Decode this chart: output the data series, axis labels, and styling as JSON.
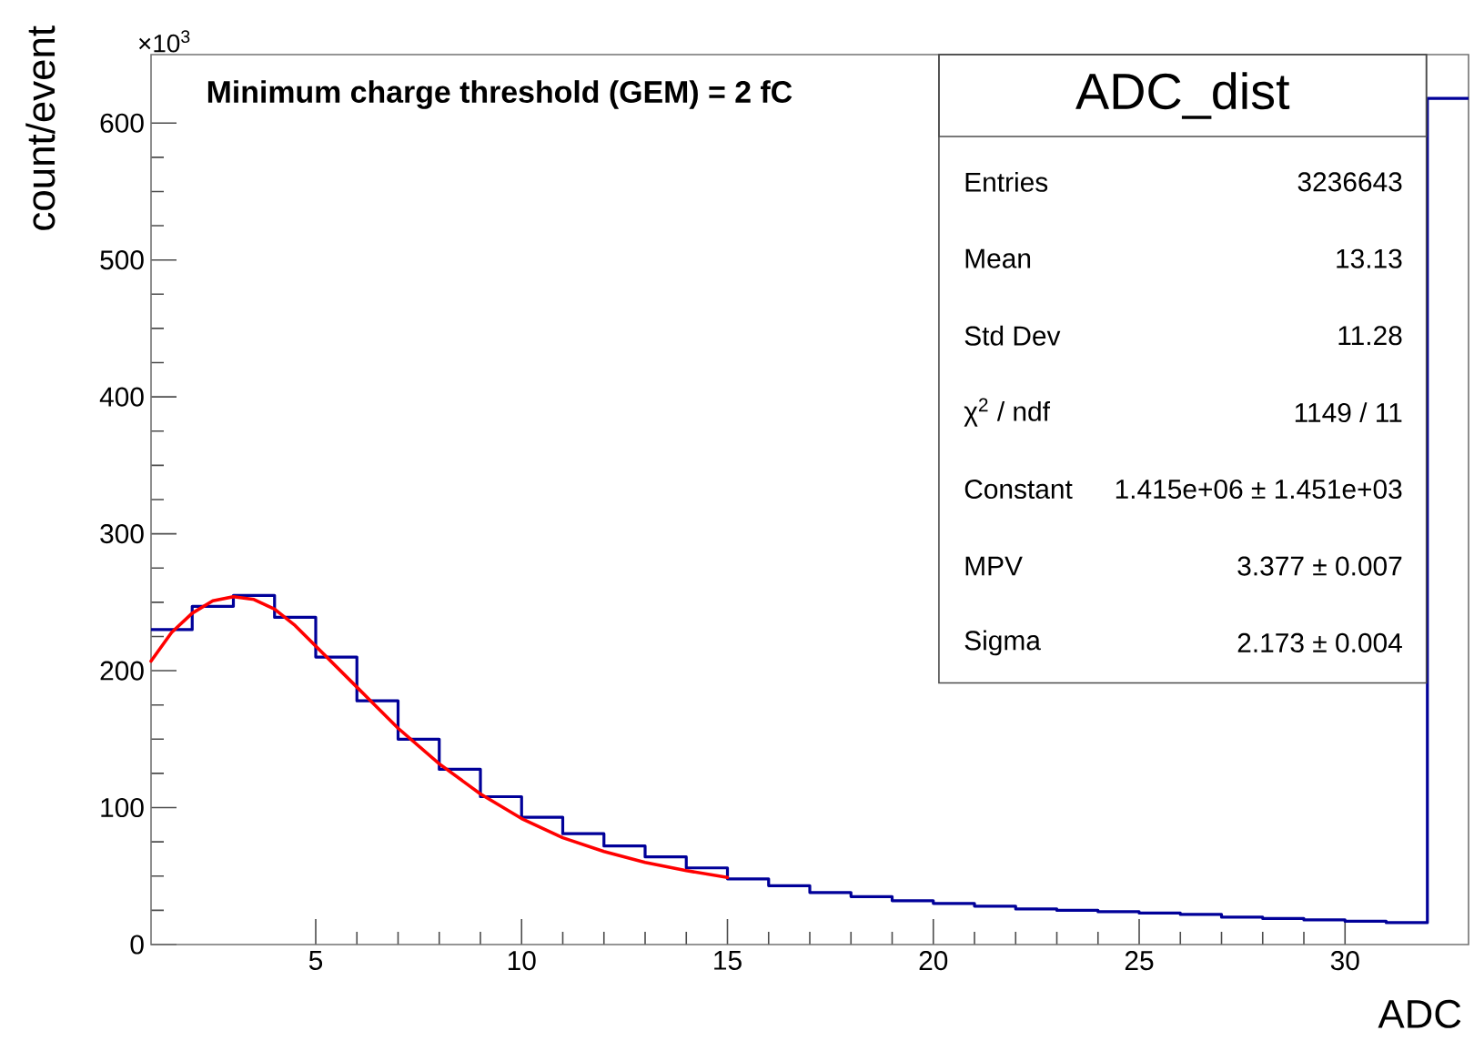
{
  "chart_data": {
    "type": "histogram",
    "title": "Minimum charge threshold (GEM) = 2 fC",
    "xlabel": "ADC",
    "ylabel": "count/event",
    "bins": [
      1,
      2,
      3,
      4,
      5,
      6,
      7,
      8,
      9,
      10,
      11,
      12,
      13,
      14,
      15,
      16,
      17,
      18,
      19,
      20,
      21,
      22,
      23,
      24,
      25,
      26,
      27,
      28,
      29,
      30,
      31,
      32,
      33
    ],
    "values": [
      230,
      247,
      255,
      239,
      210,
      178,
      150,
      128,
      108,
      93,
      81,
      72,
      64,
      56,
      48,
      43,
      38,
      35,
      32,
      30,
      28,
      26,
      25,
      24,
      23,
      22,
      20,
      19,
      18,
      17,
      16,
      618
    ],
    "color": "#000099",
    "series": [
      {
        "type": "line",
        "color": "#ff0000",
        "x": [
          1,
          1.5,
          2,
          2.5,
          3,
          3.5,
          4,
          4.5,
          5,
          6,
          7,
          8,
          9,
          10,
          11,
          12,
          13,
          14,
          15
        ],
        "values": [
          207,
          228,
          242,
          251,
          254,
          252,
          245,
          233,
          218,
          188,
          158,
          132,
          110,
          92,
          78,
          68,
          60,
          54,
          49
        ]
      }
    ],
    "xlim": [
      1,
      33
    ],
    "ylim": [
      0,
      650
    ],
    "xticks": [
      5,
      10,
      15,
      20,
      25,
      30
    ],
    "yticks": [
      0,
      100,
      200,
      300,
      400,
      500,
      600
    ],
    "annotations": [
      "×10$^{3}$",
      "ADC_dist",
      "Entries",
      "3236643",
      "Mean",
      "13.13",
      "Std Dev",
      "11.28",
      "χ$^{2}$ / ndf",
      "1149 / 11",
      "Constant",
      "1.415e+06 ± 1.451e+03",
      "MPV",
      "3.377 ± 0.007",
      "Sigma",
      "2.173 ± 0.004"
    ],
    "grid": false
  }
}
